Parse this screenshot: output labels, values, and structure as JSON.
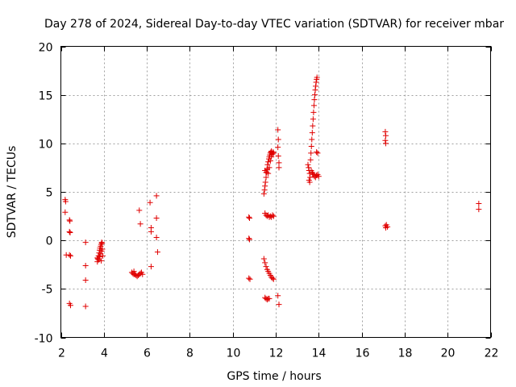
{
  "chart_data": {
    "type": "scatter",
    "title": "Day 278 of 2024, Sidereal Day-to-day VTEC variation (SDTVAR) for receiver mbar",
    "xlabel": "GPS time / hours",
    "ylabel": "SDTVAR / TECUs",
    "xlim": [
      2,
      22
    ],
    "ylim": [
      -10,
      20
    ],
    "xticks": [
      2,
      4,
      6,
      8,
      10,
      12,
      14,
      16,
      18,
      20,
      22
    ],
    "yticks": [
      -10,
      -5,
      0,
      5,
      10,
      15,
      20
    ],
    "grid": true,
    "marker": "+",
    "marker_color": "#e00000",
    "series": [
      {
        "name": "SDTVAR",
        "points": [
          [
            2.2,
            4.2
          ],
          [
            2.22,
            4.0
          ],
          [
            2.2,
            2.9
          ],
          [
            2.25,
            -1.5
          ],
          [
            2.4,
            2.1
          ],
          [
            2.42,
            2.0
          ],
          [
            2.4,
            0.9
          ],
          [
            2.43,
            0.8
          ],
          [
            2.4,
            -1.5
          ],
          [
            2.45,
            -1.6
          ],
          [
            2.4,
            -6.5
          ],
          [
            2.45,
            -6.7
          ],
          [
            3.15,
            -0.2
          ],
          [
            3.15,
            -2.6
          ],
          [
            3.15,
            -4.1
          ],
          [
            3.15,
            -6.8
          ],
          [
            3.7,
            -2.2
          ],
          [
            3.72,
            -1.9
          ],
          [
            3.75,
            -1.6
          ],
          [
            3.78,
            -1.3
          ],
          [
            3.8,
            -1.0
          ],
          [
            3.82,
            -0.8
          ],
          [
            3.85,
            -0.6
          ],
          [
            3.87,
            -0.4
          ],
          [
            3.9,
            -0.2
          ],
          [
            3.92,
            -0.3
          ],
          [
            3.75,
            -2.0
          ],
          [
            3.8,
            -1.7
          ],
          [
            3.85,
            -1.4
          ],
          [
            3.9,
            -1.1
          ],
          [
            3.93,
            -0.9
          ],
          [
            3.95,
            -1.6
          ],
          [
            3.7,
            -1.8
          ],
          [
            3.88,
            -2.1
          ],
          [
            5.3,
            -3.3
          ],
          [
            5.35,
            -3.4
          ],
          [
            5.4,
            -3.2
          ],
          [
            5.45,
            -3.5
          ],
          [
            5.5,
            -3.6
          ],
          [
            5.55,
            -3.7
          ],
          [
            5.6,
            -3.6
          ],
          [
            5.65,
            -3.5
          ],
          [
            5.7,
            -3.4
          ],
          [
            5.75,
            -3.3
          ],
          [
            5.8,
            -3.5
          ],
          [
            5.4,
            -3.5
          ],
          [
            5.65,
            3.1
          ],
          [
            5.7,
            1.7
          ],
          [
            6.15,
            3.9
          ],
          [
            6.2,
            1.3
          ],
          [
            6.2,
            0.9
          ],
          [
            6.2,
            -2.7
          ],
          [
            6.45,
            4.6
          ],
          [
            6.45,
            2.3
          ],
          [
            6.45,
            0.3
          ],
          [
            6.5,
            -1.2
          ],
          [
            10.75,
            2.4
          ],
          [
            10.78,
            2.3
          ],
          [
            10.75,
            0.2
          ],
          [
            10.78,
            0.1
          ],
          [
            10.75,
            -3.9
          ],
          [
            10.8,
            -4.0
          ],
          [
            11.45,
            4.8
          ],
          [
            11.48,
            5.2
          ],
          [
            11.5,
            5.6
          ],
          [
            11.52,
            6.0
          ],
          [
            11.55,
            6.5
          ],
          [
            11.58,
            7.0
          ],
          [
            11.6,
            7.4
          ],
          [
            11.62,
            7.8
          ],
          [
            11.65,
            8.1
          ],
          [
            11.68,
            8.4
          ],
          [
            11.7,
            8.6
          ],
          [
            11.72,
            8.8
          ],
          [
            11.75,
            9.0
          ],
          [
            11.78,
            9.1
          ],
          [
            11.8,
            9.2
          ],
          [
            11.82,
            9.0
          ],
          [
            11.5,
            7.2
          ],
          [
            11.55,
            7.0
          ],
          [
            11.6,
            7.3
          ],
          [
            11.65,
            6.9
          ],
          [
            11.7,
            7.5
          ],
          [
            11.75,
            8.2
          ],
          [
            11.8,
            8.6
          ],
          [
            11.85,
            8.9
          ],
          [
            11.88,
            9.1
          ],
          [
            11.9,
            9.0
          ],
          [
            11.5,
            2.8
          ],
          [
            11.55,
            2.6
          ],
          [
            11.6,
            2.5
          ],
          [
            11.65,
            2.6
          ],
          [
            11.7,
            2.4
          ],
          [
            11.75,
            2.5
          ],
          [
            11.8,
            2.4
          ],
          [
            11.85,
            2.6
          ],
          [
            11.9,
            2.5
          ],
          [
            11.45,
            -1.9
          ],
          [
            11.5,
            -2.3
          ],
          [
            11.55,
            -2.7
          ],
          [
            11.6,
            -3.0
          ],
          [
            11.65,
            -3.2
          ],
          [
            11.7,
            -3.4
          ],
          [
            11.75,
            -3.6
          ],
          [
            11.8,
            -3.8
          ],
          [
            11.85,
            -3.9
          ],
          [
            11.9,
            -4.0
          ],
          [
            11.5,
            -5.9
          ],
          [
            11.55,
            -6.0
          ],
          [
            11.6,
            -6.1
          ],
          [
            11.65,
            -6.0
          ],
          [
            11.7,
            -6.0
          ],
          [
            12.1,
            11.4
          ],
          [
            12.12,
            10.4
          ],
          [
            12.1,
            9.6
          ],
          [
            12.12,
            8.7
          ],
          [
            12.15,
            8.0
          ],
          [
            12.15,
            7.5
          ],
          [
            12.1,
            -5.7
          ],
          [
            12.15,
            -6.6
          ],
          [
            13.5,
            7.8
          ],
          [
            13.53,
            7.5
          ],
          [
            13.55,
            7.2
          ],
          [
            13.58,
            6.9
          ],
          [
            13.6,
            6.5
          ],
          [
            13.55,
            6.2
          ],
          [
            13.58,
            6.0
          ],
          [
            13.62,
            8.3
          ],
          [
            13.64,
            9.0
          ],
          [
            13.66,
            9.7
          ],
          [
            13.68,
            10.4
          ],
          [
            13.7,
            11.1
          ],
          [
            13.72,
            11.8
          ],
          [
            13.74,
            12.5
          ],
          [
            13.76,
            13.2
          ],
          [
            13.78,
            13.9
          ],
          [
            13.8,
            14.5
          ],
          [
            13.82,
            15.0
          ],
          [
            13.84,
            15.5
          ],
          [
            13.86,
            15.9
          ],
          [
            13.88,
            16.3
          ],
          [
            13.9,
            16.6
          ],
          [
            13.92,
            16.8
          ],
          [
            13.7,
            7.0
          ],
          [
            13.75,
            6.8
          ],
          [
            13.8,
            6.6
          ],
          [
            13.85,
            6.5
          ],
          [
            13.9,
            6.7
          ],
          [
            13.95,
            6.8
          ],
          [
            14.0,
            6.6
          ],
          [
            13.65,
            7.2
          ],
          [
            13.72,
            6.9
          ],
          [
            13.9,
            9.1
          ],
          [
            13.95,
            9.0
          ],
          [
            17.1,
            11.2
          ],
          [
            17.12,
            10.8
          ],
          [
            17.1,
            10.3
          ],
          [
            17.12,
            10.0
          ],
          [
            17.1,
            1.5
          ],
          [
            17.12,
            1.3
          ],
          [
            17.15,
            1.6
          ],
          [
            17.2,
            1.4
          ],
          [
            21.45,
            3.8
          ],
          [
            21.45,
            3.2
          ]
        ]
      }
    ]
  }
}
